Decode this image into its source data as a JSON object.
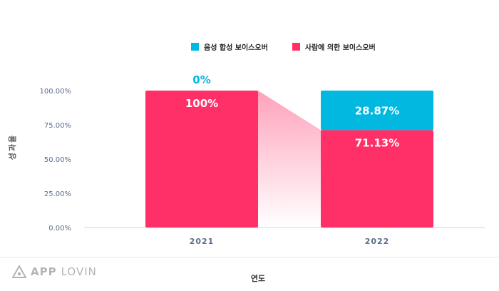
{
  "chart_data": {
    "type": "bar",
    "stacked": true,
    "categories": [
      "2021",
      "2022"
    ],
    "series": [
      {
        "name": "사람에 의한 보이스오버",
        "values": [
          100,
          71.13
        ],
        "labels": [
          "100%",
          "71.13%"
        ],
        "color": "#ff3068"
      },
      {
        "name": "음성 합성 보이스오버",
        "values": [
          0,
          28.87
        ],
        "labels": [
          "0%",
          "28.87%"
        ],
        "color": "#00b8e0"
      }
    ],
    "y_ticks": [
      "0.00%",
      "25.00%",
      "50.00%",
      "75.00%",
      "100.00%"
    ],
    "ylim": [
      0,
      100
    ],
    "xlabel": "연도",
    "ylabel": "성과율",
    "legend_position": "top"
  },
  "legend": {
    "synth_label": "음성 합성 보이스오버",
    "human_label": "사람에 의한 보이스오버",
    "synth_color": "#00b8e0",
    "human_color": "#ff3068"
  },
  "brand": {
    "part1": "APP",
    "part2": "LOVIN",
    "logo_icon": "applovin-logo-icon"
  }
}
